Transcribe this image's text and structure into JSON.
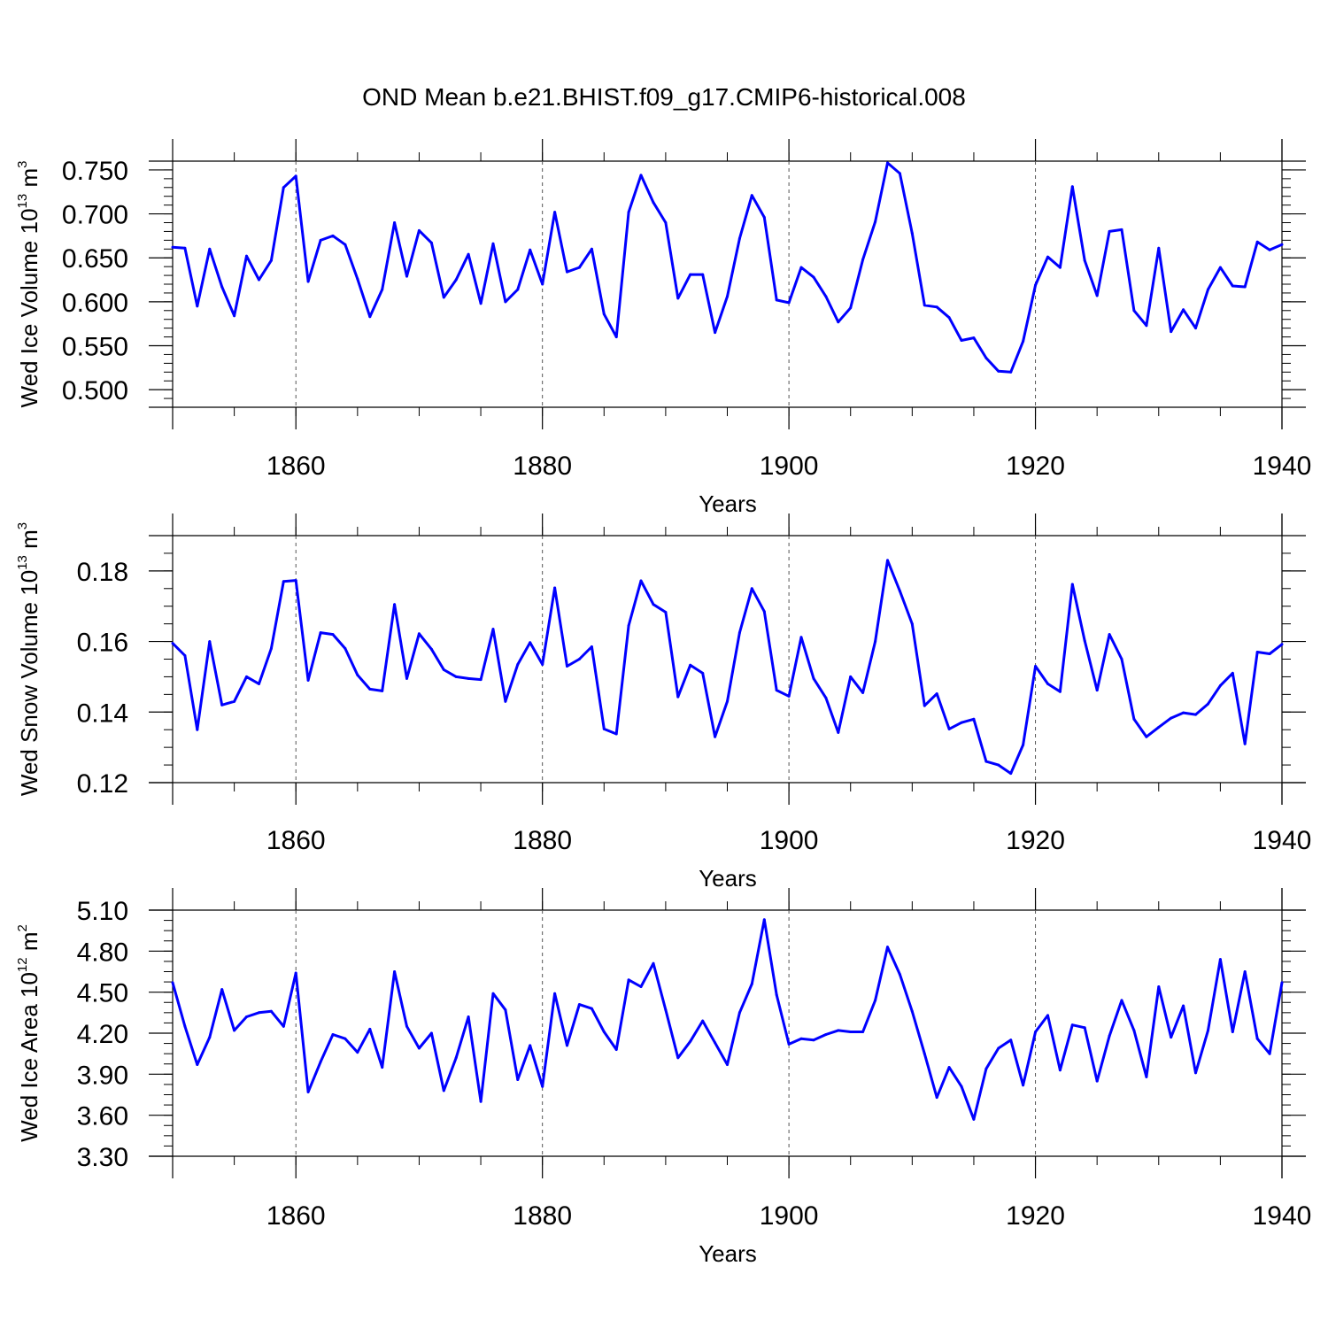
{
  "title": "OND Mean b.e21.BHIST.f09_g17.CMIP6-historical.008",
  "line_color": "#0000ff",
  "chart_data": [
    {
      "type": "line",
      "ylabel": {
        "text": "Wed Ice Volume 10",
        "exp": "13",
        "unit": " m",
        "unit_exp": "3"
      },
      "xlabel": "Years",
      "xlim": [
        1850,
        1940
      ],
      "ylim": [
        0.48,
        0.76
      ],
      "yticks": [
        0.5,
        0.55,
        0.6,
        0.65,
        0.7,
        0.75
      ],
      "ytick_labels": [
        "0.500",
        "0.550",
        "0.600",
        "0.650",
        "0.700",
        "0.750"
      ],
      "yminor_step": 0.01,
      "xticks": [
        1860,
        1880,
        1900,
        1920,
        1940
      ],
      "xtick_labels": [
        "1860",
        "1880",
        "1900",
        "1920",
        "1940"
      ],
      "x": [
        1850,
        1851,
        1852,
        1853,
        1854,
        1855,
        1856,
        1857,
        1858,
        1859,
        1860,
        1861,
        1862,
        1863,
        1864,
        1865,
        1866,
        1867,
        1868,
        1869,
        1870,
        1871,
        1872,
        1873,
        1874,
        1875,
        1876,
        1877,
        1878,
        1879,
        1880,
        1881,
        1882,
        1883,
        1884,
        1885,
        1886,
        1887,
        1888,
        1889,
        1890,
        1891,
        1892,
        1893,
        1894,
        1895,
        1896,
        1897,
        1898,
        1899,
        1900,
        1901,
        1902,
        1903,
        1904,
        1905,
        1906,
        1907,
        1908,
        1909,
        1910,
        1911,
        1912,
        1913,
        1914,
        1915,
        1916,
        1917,
        1918,
        1919,
        1920,
        1921,
        1922,
        1923,
        1924,
        1925,
        1926,
        1927,
        1928,
        1929,
        1930,
        1931,
        1932,
        1933,
        1934,
        1935,
        1936,
        1937,
        1938,
        1939,
        1940
      ],
      "y": [
        0.662,
        0.661,
        0.595,
        0.66,
        0.617,
        0.584,
        0.652,
        0.625,
        0.647,
        0.73,
        0.743,
        0.623,
        0.67,
        0.675,
        0.665,
        0.626,
        0.583,
        0.614,
        0.69,
        0.629,
        0.681,
        0.667,
        0.605,
        0.625,
        0.654,
        0.598,
        0.666,
        0.6,
        0.614,
        0.659,
        0.62,
        0.702,
        0.634,
        0.639,
        0.66,
        0.586,
        0.56,
        0.702,
        0.744,
        0.713,
        0.69,
        0.604,
        0.631,
        0.631,
        0.565,
        0.606,
        0.672,
        0.721,
        0.696,
        0.602,
        0.599,
        0.639,
        0.628,
        0.606,
        0.577,
        0.593,
        0.648,
        0.691,
        0.758,
        0.746,
        0.678,
        0.596,
        0.594,
        0.582,
        0.556,
        0.559,
        0.536,
        0.521,
        0.52,
        0.555,
        0.619,
        0.651,
        0.639,
        0.731,
        0.647,
        0.607,
        0.68,
        0.682,
        0.59,
        0.573,
        0.661,
        0.566,
        0.591,
        0.57,
        0.614,
        0.639,
        0.618,
        0.617,
        0.668,
        0.659,
        0.665
      ]
    },
    {
      "type": "line",
      "ylabel": {
        "text": "Wed Snow Volume 10",
        "exp": "13",
        "unit": " m",
        "unit_exp": "3"
      },
      "xlabel": "Years",
      "xlim": [
        1850,
        1940
      ],
      "ylim": [
        0.12,
        0.19
      ],
      "yticks": [
        0.12,
        0.14,
        0.16,
        0.18
      ],
      "ytick_labels": [
        "0.12",
        "0.14",
        "0.16",
        "0.18"
      ],
      "yminor_step": 0.005,
      "xticks": [
        1860,
        1880,
        1900,
        1920,
        1940
      ],
      "xtick_labels": [
        "1860",
        "1880",
        "1900",
        "1920",
        "1940"
      ],
      "x": [
        1850,
        1851,
        1852,
        1853,
        1854,
        1855,
        1856,
        1857,
        1858,
        1859,
        1860,
        1861,
        1862,
        1863,
        1864,
        1865,
        1866,
        1867,
        1868,
        1869,
        1870,
        1871,
        1872,
        1873,
        1874,
        1875,
        1876,
        1877,
        1878,
        1879,
        1880,
        1881,
        1882,
        1883,
        1884,
        1885,
        1886,
        1887,
        1888,
        1889,
        1890,
        1891,
        1892,
        1893,
        1894,
        1895,
        1896,
        1897,
        1898,
        1899,
        1900,
        1901,
        1902,
        1903,
        1904,
        1905,
        1906,
        1907,
        1908,
        1909,
        1910,
        1911,
        1912,
        1913,
        1914,
        1915,
        1916,
        1917,
        1918,
        1919,
        1920,
        1921,
        1922,
        1923,
        1924,
        1925,
        1926,
        1927,
        1928,
        1929,
        1930,
        1931,
        1932,
        1933,
        1934,
        1935,
        1936,
        1937,
        1938,
        1939,
        1940
      ],
      "y": [
        0.1595,
        0.156,
        0.135,
        0.16,
        0.142,
        0.143,
        0.15,
        0.148,
        0.158,
        0.177,
        0.1773,
        0.149,
        0.1625,
        0.162,
        0.158,
        0.1505,
        0.1465,
        0.146,
        0.1705,
        0.1495,
        0.1622,
        0.1578,
        0.152,
        0.15,
        0.1495,
        0.1492,
        0.1635,
        0.143,
        0.1535,
        0.1597,
        0.1535,
        0.1752,
        0.153,
        0.155,
        0.1585,
        0.1352,
        0.1338,
        0.1645,
        0.1772,
        0.1705,
        0.1683,
        0.1443,
        0.1533,
        0.151,
        0.133,
        0.143,
        0.1625,
        0.175,
        0.1685,
        0.1462,
        0.1445,
        0.1612,
        0.1495,
        0.144,
        0.1342,
        0.15,
        0.1455,
        0.16,
        0.183,
        0.1743,
        0.165,
        0.1418,
        0.1452,
        0.1352,
        0.137,
        0.138,
        0.126,
        0.125,
        0.1226,
        0.1307,
        0.153,
        0.148,
        0.1458,
        0.1762,
        0.1602,
        0.1462,
        0.162,
        0.155,
        0.138,
        0.133,
        0.1357,
        0.1383,
        0.1398,
        0.1393,
        0.1423,
        0.1475,
        0.151,
        0.131,
        0.157,
        0.1565,
        0.1592
      ]
    },
    {
      "type": "line",
      "ylabel": {
        "text": "Wed Ice Area 10",
        "exp": "12",
        "unit": " m",
        "unit_exp": "2"
      },
      "xlabel": "Years",
      "xlim": [
        1850,
        1940
      ],
      "ylim": [
        3.3,
        5.1
      ],
      "yticks": [
        3.3,
        3.6,
        3.9,
        4.2,
        4.5,
        4.8,
        5.1
      ],
      "ytick_labels": [
        "3.30",
        "3.60",
        "3.90",
        "4.20",
        "4.50",
        "4.80",
        "5.10"
      ],
      "yminor_step": 0.075,
      "xticks": [
        1860,
        1880,
        1900,
        1920,
        1940
      ],
      "xtick_labels": [
        "1860",
        "1880",
        "1900",
        "1920",
        "1940"
      ],
      "x": [
        1850,
        1851,
        1852,
        1853,
        1854,
        1855,
        1856,
        1857,
        1858,
        1859,
        1860,
        1861,
        1862,
        1863,
        1864,
        1865,
        1866,
        1867,
        1868,
        1869,
        1870,
        1871,
        1872,
        1873,
        1874,
        1875,
        1876,
        1877,
        1878,
        1879,
        1880,
        1881,
        1882,
        1883,
        1884,
        1885,
        1886,
        1887,
        1888,
        1889,
        1890,
        1891,
        1892,
        1893,
        1894,
        1895,
        1896,
        1897,
        1898,
        1899,
        1900,
        1901,
        1902,
        1903,
        1904,
        1905,
        1906,
        1907,
        1908,
        1909,
        1910,
        1911,
        1912,
        1913,
        1914,
        1915,
        1916,
        1917,
        1918,
        1919,
        1920,
        1921,
        1922,
        1923,
        1924,
        1925,
        1926,
        1927,
        1928,
        1929,
        1930,
        1931,
        1932,
        1933,
        1934,
        1935,
        1936,
        1937,
        1938,
        1939,
        1940
      ],
      "y": [
        4.57,
        4.25,
        3.97,
        4.17,
        4.52,
        4.22,
        4.32,
        4.35,
        4.36,
        4.25,
        4.64,
        3.77,
        3.99,
        4.19,
        4.16,
        4.06,
        4.23,
        3.95,
        4.65,
        4.25,
        4.09,
        4.2,
        3.78,
        4.02,
        4.32,
        3.7,
        4.49,
        4.37,
        3.86,
        4.11,
        3.81,
        4.49,
        4.11,
        4.41,
        4.38,
        4.21,
        4.08,
        4.59,
        4.54,
        4.71,
        4.37,
        4.02,
        4.14,
        4.29,
        4.13,
        3.97,
        4.35,
        4.56,
        5.03,
        4.48,
        4.12,
        4.16,
        4.15,
        4.19,
        4.22,
        4.21,
        4.21,
        4.44,
        4.83,
        4.63,
        4.36,
        4.05,
        3.73,
        3.95,
        3.81,
        3.57,
        3.94,
        4.09,
        4.15,
        3.82,
        4.21,
        4.33,
        3.93,
        4.26,
        4.24,
        3.85,
        4.18,
        4.44,
        4.22,
        3.88,
        4.54,
        4.17,
        4.4,
        3.91,
        4.22,
        4.74,
        4.21,
        4.65,
        4.16,
        4.05,
        4.57
      ]
    }
  ]
}
